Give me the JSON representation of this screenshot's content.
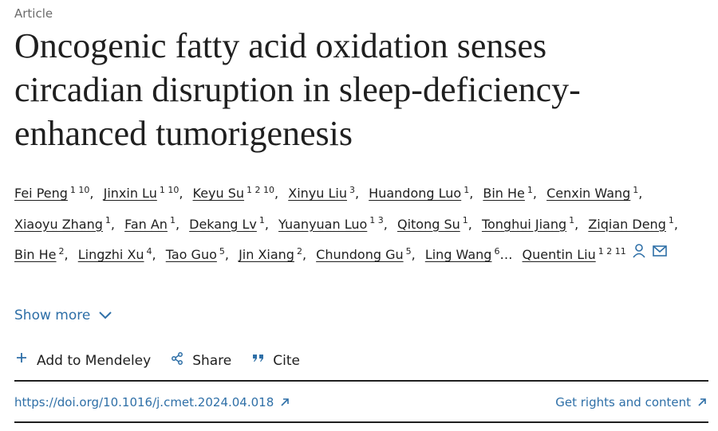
{
  "article_type": "Article",
  "title": "Oncogenic fatty acid oxidation senses circadian disruption in sleep-deficiency-enhanced tumorigenesis",
  "authors": [
    {
      "name": "Fei Peng",
      "sup": "1 10",
      "trailing": ","
    },
    {
      "name": "Jinxin Lu",
      "sup": "1 10",
      "trailing": ","
    },
    {
      "name": "Keyu Su",
      "sup": "1 2 10",
      "trailing": ","
    },
    {
      "name": "Xinyu Liu",
      "sup": "3",
      "trailing": ","
    },
    {
      "name": "Huandong Luo",
      "sup": "1",
      "trailing": ","
    },
    {
      "name": "Bin He",
      "sup": "1",
      "trailing": ","
    },
    {
      "name": "Cenxin Wang",
      "sup": "1",
      "trailing": ","
    },
    {
      "name": "Xiaoyu Zhang",
      "sup": "1",
      "trailing": ","
    },
    {
      "name": "Fan An",
      "sup": "1",
      "trailing": ","
    },
    {
      "name": "Dekang Lv",
      "sup": "1",
      "trailing": ","
    },
    {
      "name": "Yuanyuan Luo",
      "sup": "1 3",
      "trailing": ","
    },
    {
      "name": "Qitong Su",
      "sup": "1",
      "trailing": ","
    },
    {
      "name": "Tonghui Jiang",
      "sup": "1",
      "trailing": ","
    },
    {
      "name": "Ziqian Deng",
      "sup": "1",
      "trailing": ","
    },
    {
      "name": "Bin He",
      "sup": "2",
      "trailing": ","
    },
    {
      "name": "Lingzhi Xu",
      "sup": "4",
      "trailing": ","
    },
    {
      "name": "Tao Guo",
      "sup": "5",
      "trailing": ","
    },
    {
      "name": "Jin Xiang",
      "sup": "2",
      "trailing": ","
    },
    {
      "name": "Chundong Gu",
      "sup": "5",
      "trailing": ","
    },
    {
      "name": "Ling Wang",
      "sup": "6",
      "trailing": "…"
    },
    {
      "name": "Quentin Liu",
      "sup": "1 2 11"
    }
  ],
  "show_more": "Show more",
  "actions": [
    "Add to Mendeley",
    "Share",
    "Cite"
  ],
  "doi": "https://doi.org/10.1016/j.cmet.2024.04.018",
  "rights": "Get rights and content"
}
